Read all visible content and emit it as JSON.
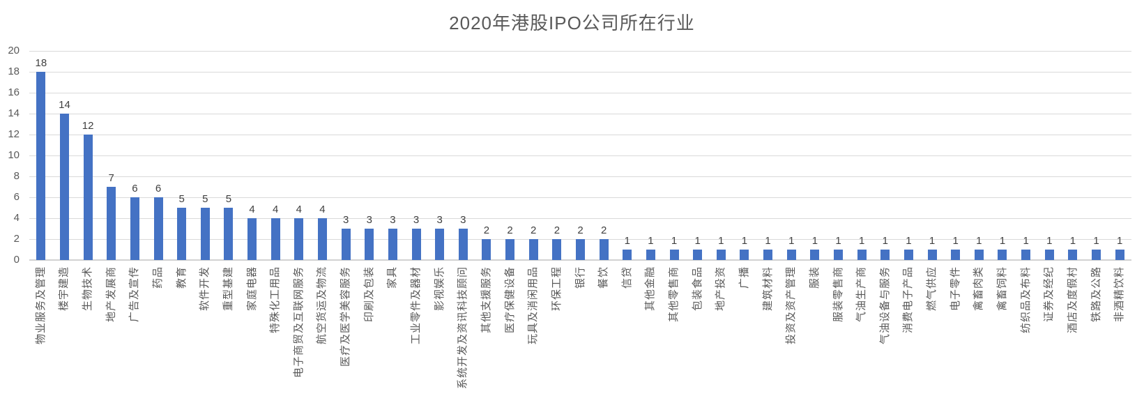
{
  "chart_data": {
    "type": "bar",
    "title": "2020年港股IPO公司所在行业",
    "categories": [
      "物业服务及管理",
      "楼宇建造",
      "生物技术",
      "地产发展商",
      "广告及宣传",
      "药品",
      "教育",
      "软件开发",
      "重型基建",
      "家庭电器",
      "特殊化工用品",
      "电子商贸及互联网服务",
      "航空货运及物流",
      "医疗及医学美容服务",
      "印刷及包装",
      "家具",
      "工业零件及器材",
      "影视娱乐",
      "系统开发及资讯科技顾问",
      "其他支援服务",
      "医疗保健设备",
      "玩具及消闲用品",
      "环保工程",
      "银行",
      "餐饮",
      "信贷",
      "其他金融",
      "其他零售商",
      "包装食品",
      "地产投资",
      "广播",
      "建筑材料",
      "投资及资产管理",
      "服装",
      "服装零售商",
      "气油生产商",
      "气油设备与服务",
      "消费电子产品",
      "燃气供应",
      "电子零件",
      "禽畜肉类",
      "禽畜饲料",
      "纺织品及布料",
      "证券及经纪",
      "酒店及度假村",
      "铁路及公路",
      "非酒精饮料"
    ],
    "values": [
      18,
      14,
      12,
      7,
      6,
      6,
      5,
      5,
      5,
      4,
      4,
      4,
      4,
      3,
      3,
      3,
      3,
      3,
      3,
      2,
      2,
      2,
      2,
      2,
      2,
      1,
      1,
      1,
      1,
      1,
      1,
      1,
      1,
      1,
      1,
      1,
      1,
      1,
      1,
      1,
      1,
      1,
      1,
      1,
      1,
      1,
      1
    ],
    "xlabel": "",
    "ylabel": "",
    "ylim": [
      0,
      20
    ],
    "ytick_step": 2,
    "grid": true,
    "legend_position": "none",
    "data_labels": true,
    "bar_color": "#4472C4",
    "grid_color": "#D9D9D9",
    "title_color": "#595959",
    "axis_text_color": "#595959",
    "value_label_color": "#404040"
  }
}
